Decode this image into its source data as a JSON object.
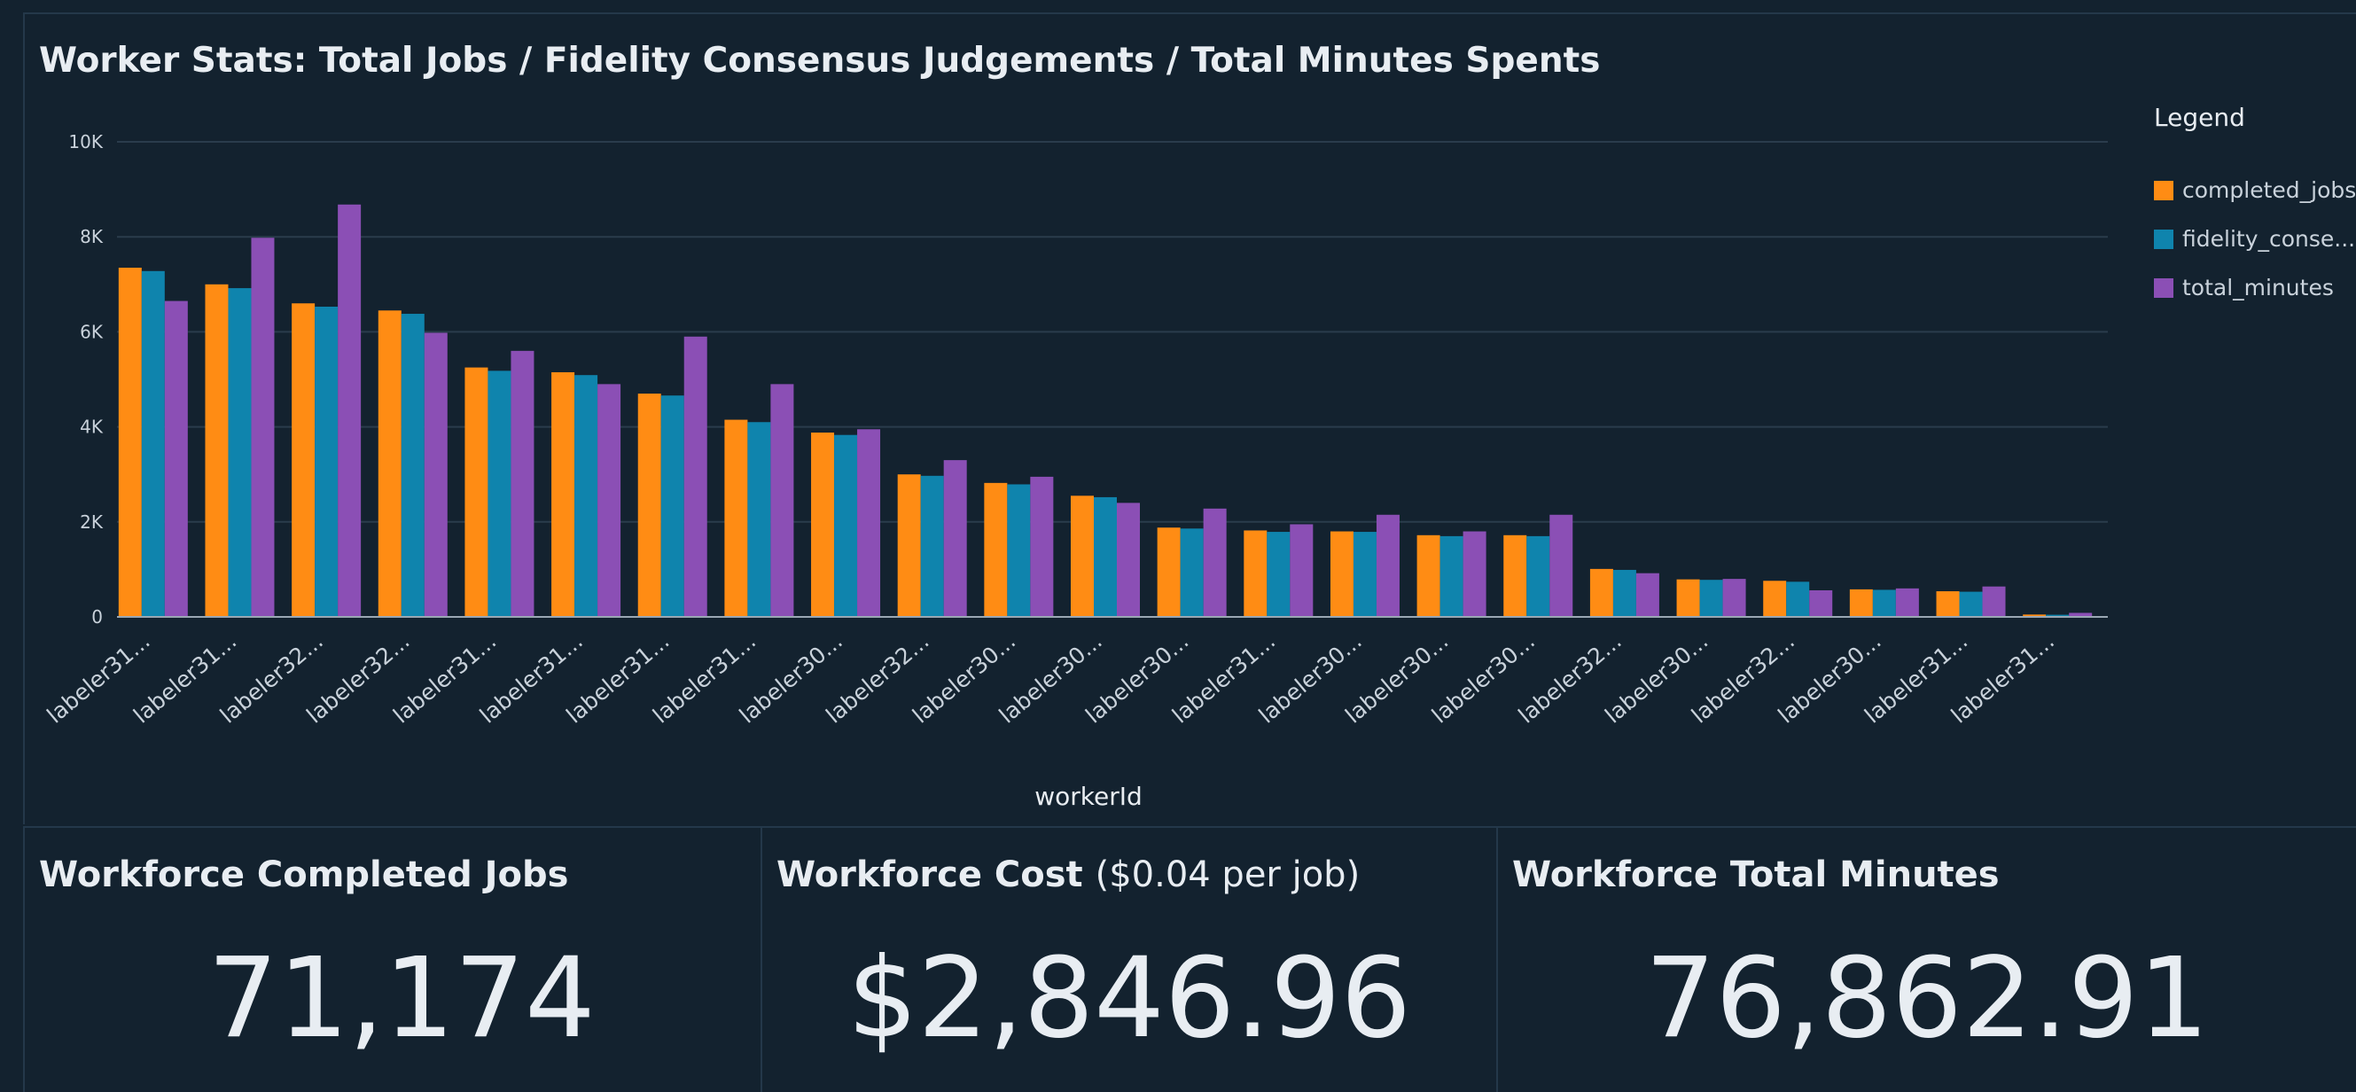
{
  "chart": {
    "title": "Worker Stats: Total Jobs / Fidelity Consensus Judgements / Total Minutes Spents",
    "legend_title": "Legend",
    "legend_items": [
      "completed_jobs",
      "fidelity_conse...",
      "total_minutes"
    ]
  },
  "chart_data": {
    "type": "bar",
    "title": "Worker Stats: Total Jobs / Fidelity Consensus Judgements / Total Minutes Spents",
    "xlabel": "workerId",
    "ylabel": "",
    "ylim": [
      0,
      10000
    ],
    "yticks": [
      0,
      2000,
      4000,
      6000,
      8000,
      10000
    ],
    "ytick_labels": [
      "0",
      "2K",
      "4K",
      "6K",
      "8K",
      "10K"
    ],
    "grid": true,
    "legend_placement": "right",
    "categories": [
      "labeler31...",
      "labeler31...",
      "labeler32...",
      "labeler32...",
      "labeler31...",
      "labeler31...",
      "labeler31...",
      "labeler31...",
      "labeler30...",
      "labeler32...",
      "labeler30...",
      "labeler30...",
      "labeler30...",
      "labeler31...",
      "labeler30...",
      "labeler30...",
      "labeler30...",
      "labeler32...",
      "labeler30...",
      "labeler32...",
      "labeler30...",
      "labeler31...",
      "labeler31..."
    ],
    "series": [
      {
        "name": "completed_jobs",
        "color": "#ff8c14",
        "values": [
          7350,
          7000,
          6600,
          6450,
          5250,
          5150,
          4700,
          4150,
          3880,
          3000,
          2820,
          2550,
          1880,
          1820,
          1800,
          1720,
          1720,
          1010,
          790,
          760,
          580,
          540,
          50
        ]
      },
      {
        "name": "fidelity_conse...",
        "color": "#0f84ad",
        "values": [
          7280,
          6920,
          6530,
          6380,
          5180,
          5090,
          4660,
          4100,
          3830,
          2970,
          2790,
          2520,
          1860,
          1790,
          1790,
          1700,
          1700,
          990,
          780,
          740,
          570,
          530,
          45
        ]
      },
      {
        "name": "total_minutes",
        "color": "#8b4fb5",
        "values": [
          6650,
          7980,
          8680,
          5980,
          5600,
          4900,
          5900,
          4900,
          3950,
          3300,
          2950,
          2400,
          2280,
          1950,
          2150,
          1800,
          2150,
          920,
          800,
          560,
          600,
          640,
          85
        ]
      }
    ]
  },
  "kpis": [
    {
      "title": "Workforce Completed Jobs",
      "subtitle": "",
      "value": "71,174"
    },
    {
      "title": "Workforce Cost",
      "subtitle": "($0.04 per job)",
      "value": "$2,846.96"
    },
    {
      "title": "Workforce Total Minutes",
      "subtitle": "",
      "value": "76,862.91"
    }
  ],
  "colors": {
    "background": "#13222f",
    "grid": "#2a3c4c",
    "text": "#e8edf2",
    "completed_jobs": "#ff8c14",
    "fidelity": "#0f84ad",
    "total_minutes": "#8b4fb5"
  }
}
